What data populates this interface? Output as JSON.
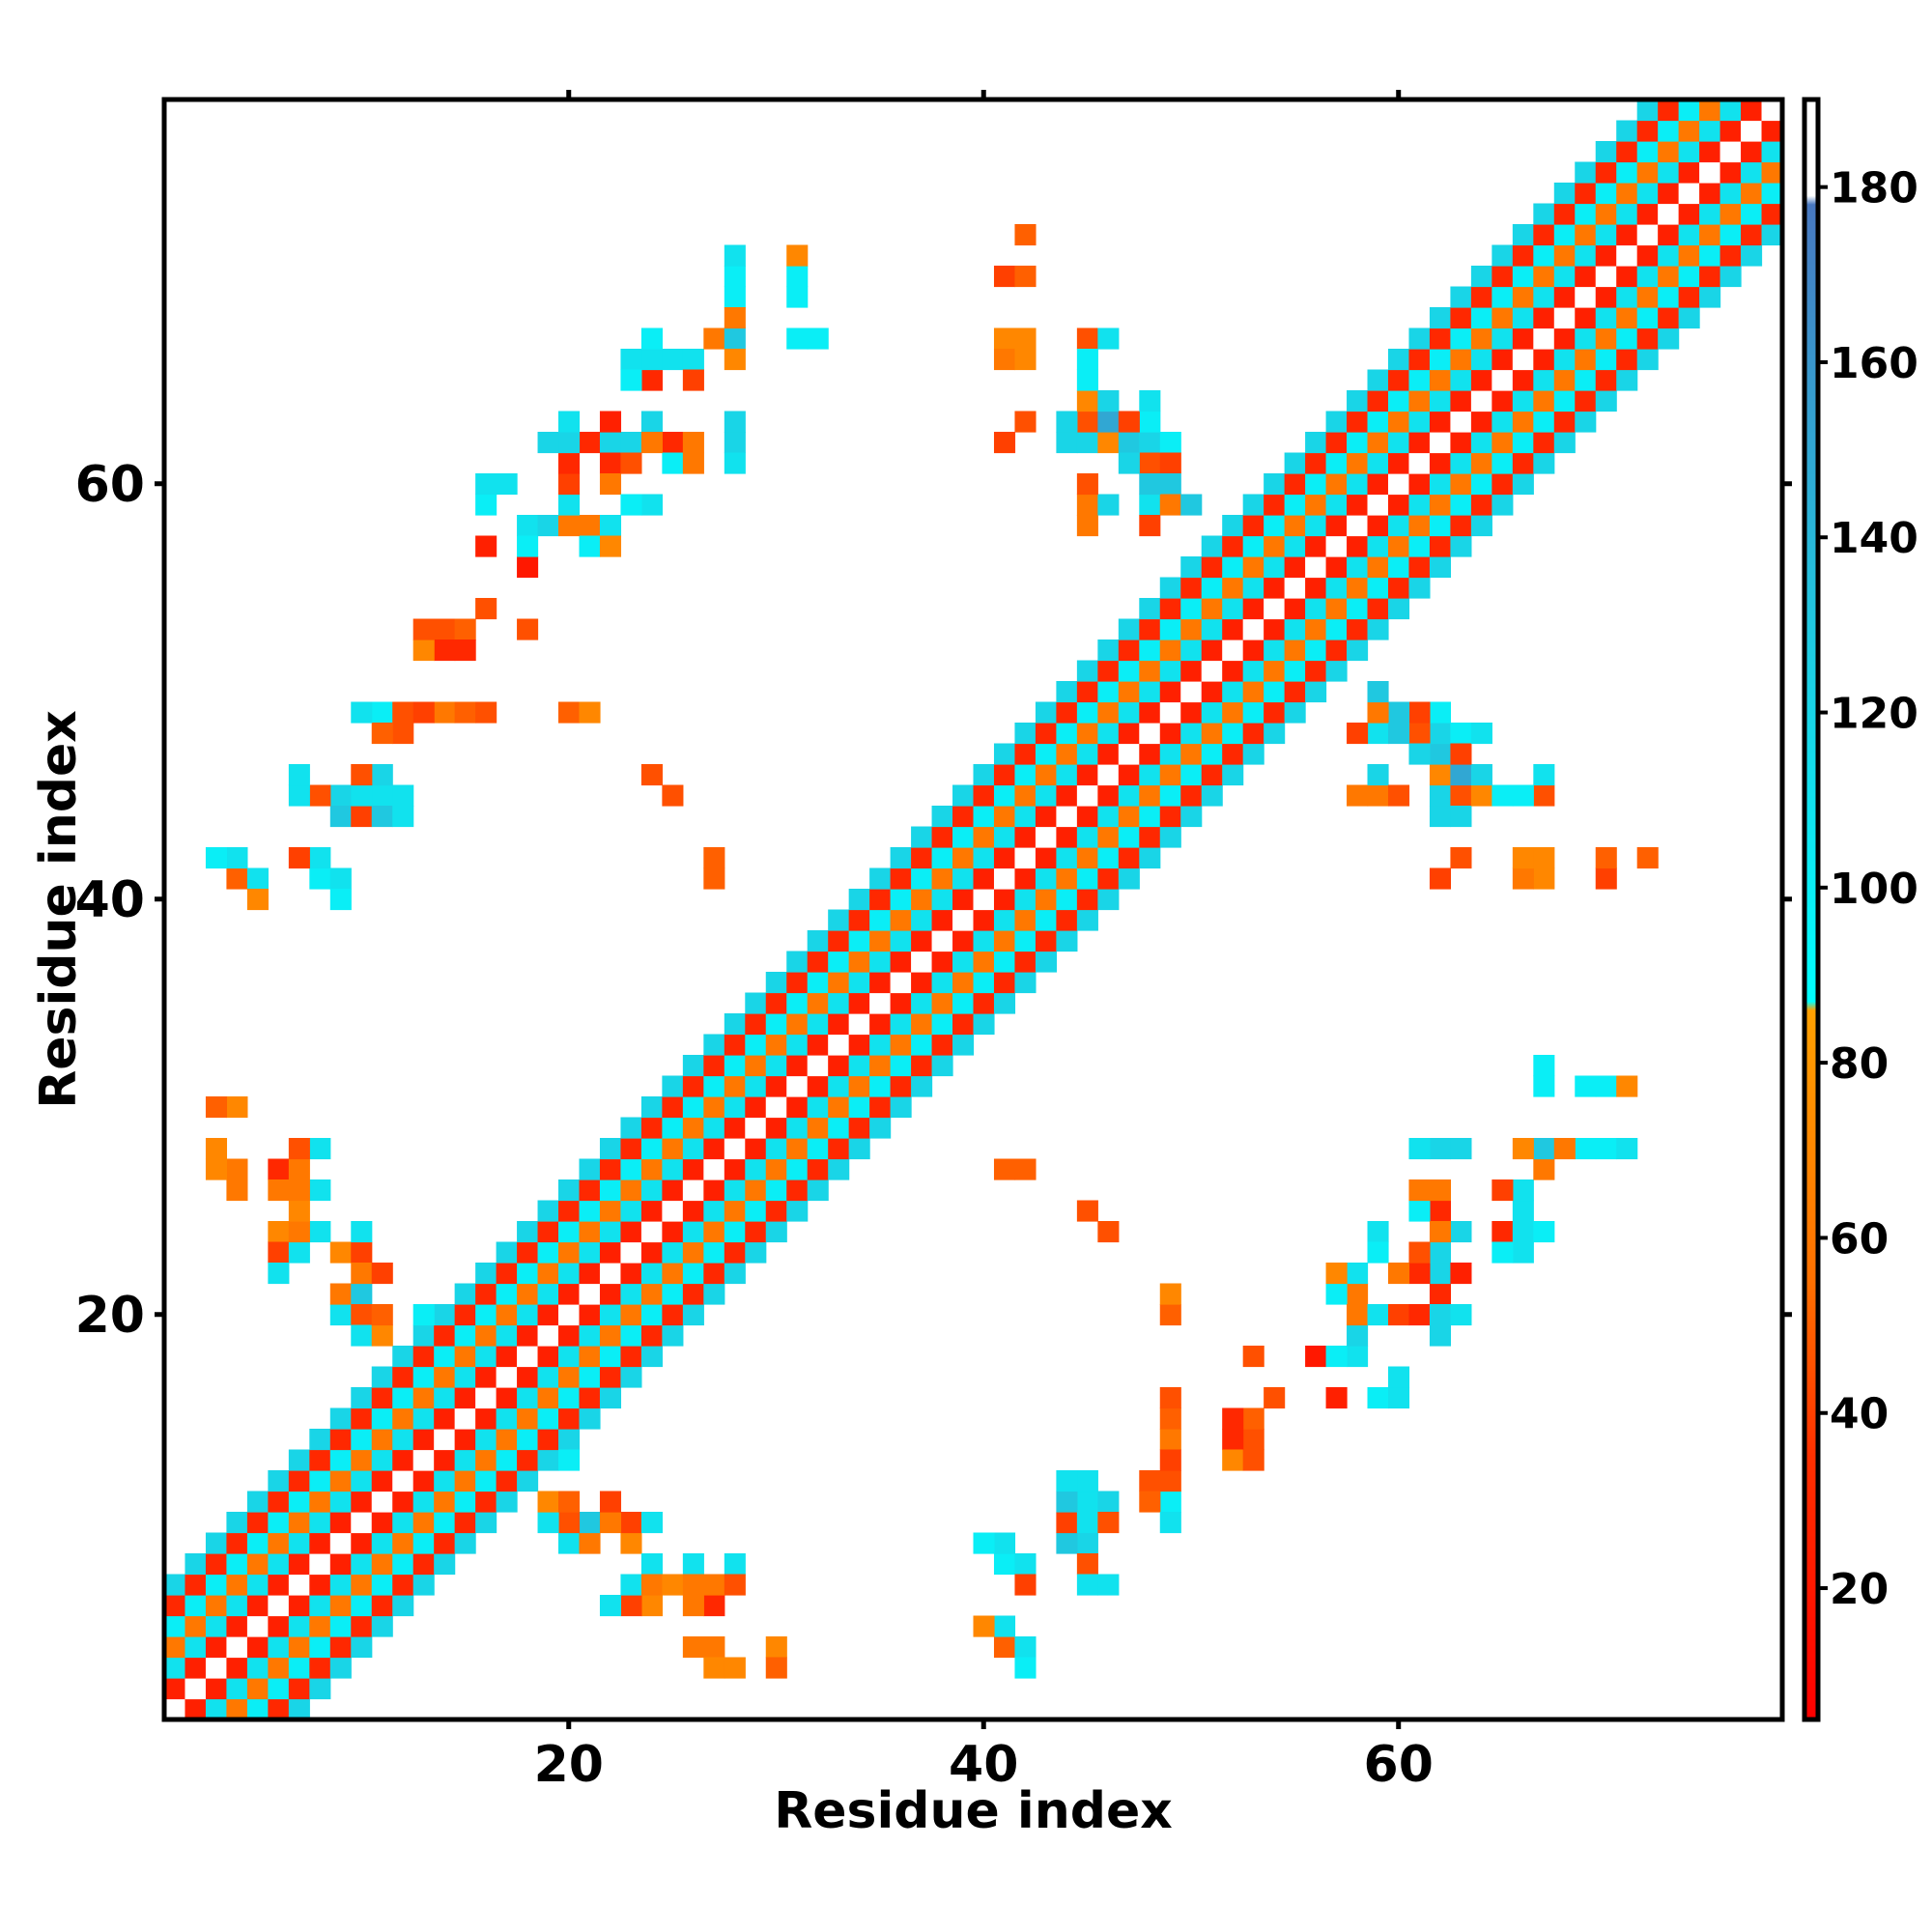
{
  "chart_data": {
    "type": "heatmap",
    "title": "",
    "xlabel": "Residue index",
    "ylabel": "Residue index",
    "xlim": [
      1,
      78
    ],
    "ylim": [
      1,
      78
    ],
    "x_ticks": [
      20,
      40,
      60
    ],
    "y_ticks": [
      20,
      40,
      60
    ],
    "grid": false,
    "legend": "right colorbar",
    "colorbar": {
      "min": 5,
      "max": 190,
      "ticks": [
        20,
        40,
        60,
        80,
        100,
        120,
        140,
        160,
        180
      ],
      "stops": [
        {
          "value": 5,
          "color": "#ff0000"
        },
        {
          "value": 35,
          "color": "#ff3000"
        },
        {
          "value": 55,
          "color": "#ff7000"
        },
        {
          "value": 86,
          "color": "#ffa000"
        },
        {
          "value": 87,
          "color": "#00ffff"
        },
        {
          "value": 130,
          "color": "#20c8e0"
        },
        {
          "value": 178,
          "color": "#4878c0"
        },
        {
          "value": 179,
          "color": "#ffffff"
        },
        {
          "value": 190,
          "color": "#ffffff"
        }
      ]
    },
    "cells": {
      "note_columns": [
        "i",
        "j",
        "value"
      ],
      "diagonal_bands": [
        {
          "offset": 0,
          "value": 180
        },
        {
          "offset": 1,
          "value": 25
        },
        {
          "offset": 2,
          "value": 110
        },
        {
          "offset": 3,
          "value": 60
        },
        {
          "offset": 4,
          "value": 100
        },
        {
          "offset": 5,
          "value": 30
        },
        {
          "offset": 6,
          "value": 120
        }
      ],
      "sheet_region": [
        [
          13,
          22,
          14,
          22
        ]
      ],
      "offdiag": [
        [
          4,
          41,
          100
        ],
        [
          5,
          41,
          110
        ],
        [
          5,
          40,
          70
        ],
        [
          8,
          41,
          50
        ],
        [
          9,
          41,
          110
        ],
        [
          9,
          40,
          100
        ],
        [
          9,
          45,
          120
        ],
        [
          9,
          44,
          130
        ],
        [
          10,
          44,
          40
        ],
        [
          11,
          45,
          40
        ],
        [
          11,
          44,
          130
        ],
        [
          12,
          45,
          110
        ],
        [
          12,
          44,
          110
        ],
        [
          11,
          49,
          120
        ],
        [
          12,
          49,
          110
        ],
        [
          12,
          48,
          45
        ],
        [
          14,
          49,
          40
        ],
        [
          15,
          49,
          50
        ],
        [
          16,
          49,
          45
        ],
        [
          14,
          53,
          40
        ],
        [
          14,
          52,
          70
        ],
        [
          15,
          53,
          50
        ],
        [
          15,
          52,
          30
        ],
        [
          18,
          53,
          45
        ],
        [
          18,
          56,
          20
        ],
        [
          18,
          58,
          110
        ],
        [
          18,
          57,
          100
        ],
        [
          19,
          58,
          100
        ],
        [
          21,
          58,
          60
        ],
        [
          21,
          57,
          100
        ],
        [
          22,
          58,
          110
        ],
        [
          22,
          57,
          70
        ],
        [
          20,
          49,
          50
        ],
        [
          25,
          45,
          45
        ],
        [
          27,
          41,
          50
        ],
        [
          21,
          62,
          100
        ],
        [
          22,
          62,
          120
        ],
        [
          22,
          61,
          30
        ],
        [
          22,
          60,
          60
        ],
        [
          23,
          62,
          60
        ],
        [
          23,
          61,
          45
        ],
        [
          24,
          63,
          30
        ],
        [
          25,
          62,
          30
        ],
        [
          25,
          61,
          100
        ],
        [
          26,
          62,
          60
        ],
        [
          26,
          61,
          60
        ],
        [
          25,
          66,
          110
        ],
        [
          26,
          66,
          110
        ],
        [
          26,
          65,
          40
        ],
        [
          27,
          67,
          50
        ],
        [
          28,
          67,
          120
        ],
        [
          28,
          66,
          100
        ],
        [
          28,
          62,
          120
        ],
        [
          28,
          61,
          110
        ],
        [
          28,
          70,
          100
        ],
        [
          28,
          69,
          100
        ],
        [
          28,
          68,
          60
        ],
        [
          31,
          70,
          70
        ],
        [
          31,
          69,
          100
        ],
        [
          32,
          67,
          100
        ],
        [
          41,
          70,
          40
        ],
        [
          41,
          67,
          70
        ],
        [
          41,
          66,
          60
        ],
        [
          41,
          62,
          40
        ],
        [
          45,
          67,
          45
        ],
        [
          46,
          67,
          100
        ],
        [
          45,
          66,
          100
        ],
        [
          44,
          62,
          120
        ],
        [
          45,
          62,
          45
        ],
        [
          45,
          63,
          100
        ],
        [
          46,
          62,
          70
        ],
        [
          46,
          63,
          150
        ],
        [
          47,
          62,
          60
        ],
        [
          48,
          62,
          120
        ],
        [
          48,
          61,
          140
        ],
        [
          49,
          62,
          100
        ],
        [
          49,
          61,
          40
        ],
        [
          49,
          60,
          130
        ],
        [
          45,
          59,
          40
        ],
        [
          45,
          58,
          60
        ],
        [
          46,
          59,
          120
        ],
        [
          48,
          59,
          110
        ],
        [
          48,
          58,
          40
        ],
        [
          49,
          59,
          60
        ],
        [
          50,
          59,
          130
        ],
        [
          4,
          30,
          70
        ],
        [
          4,
          27,
          60
        ],
        [
          4,
          26,
          60
        ],
        [
          6,
          27,
          30
        ],
        [
          6,
          26,
          60
        ],
        [
          7,
          27,
          120
        ],
        [
          6,
          24,
          70
        ],
        [
          6,
          23,
          40
        ],
        [
          6,
          22,
          110
        ],
        [
          7,
          23,
          110
        ],
        [
          9,
          23,
          70
        ],
        [
          10,
          23,
          40
        ],
        [
          10,
          24,
          110
        ],
        [
          9,
          20,
          110
        ],
        [
          9,
          21,
          60
        ],
        [
          10,
          21,
          60
        ],
        [
          10,
          20,
          45
        ],
        [
          10,
          22,
          150
        ],
        [
          42,
          27,
          50
        ],
        [
          46,
          24,
          45
        ],
        [
          49,
          21,
          70
        ],
        [
          45,
          11,
          110
        ],
        [
          46,
          11,
          120
        ],
        [
          45,
          10,
          110
        ],
        [
          46,
          10,
          45
        ],
        [
          48,
          11,
          50
        ],
        [
          49,
          11,
          100
        ],
        [
          49,
          10,
          110
        ],
        [
          45,
          8,
          45
        ],
        [
          45,
          7,
          110
        ],
        [
          46,
          7,
          110
        ],
        [
          49,
          14,
          60
        ],
        [
          49,
          13,
          40
        ],
        [
          49,
          12,
          45
        ],
        [
          52,
          14,
          30
        ],
        [
          53,
          14,
          45
        ],
        [
          52,
          13,
          70
        ],
        [
          53,
          13,
          45
        ],
        [
          54,
          16,
          45
        ],
        [
          57,
          16,
          25
        ],
        [
          59,
          16,
          100
        ],
        [
          60,
          16,
          110
        ],
        [
          60,
          17,
          110
        ],
        [
          58,
          20,
          60
        ],
        [
          58,
          19,
          120
        ],
        [
          59,
          20,
          110
        ],
        [
          60,
          20,
          40
        ],
        [
          61,
          20,
          30
        ],
        [
          62,
          20,
          120
        ],
        [
          62,
          19,
          120
        ],
        [
          63,
          20,
          110
        ],
        [
          62,
          21,
          30
        ],
        [
          63,
          22,
          25
        ],
        [
          59,
          24,
          110
        ],
        [
          59,
          23,
          100
        ],
        [
          62,
          24,
          60
        ],
        [
          62,
          23,
          120
        ],
        [
          63,
          24,
          120
        ],
        [
          65,
          24,
          30
        ],
        [
          66,
          24,
          110
        ],
        [
          66,
          23,
          110
        ],
        [
          67,
          24,
          100
        ],
        [
          65,
          23,
          100
        ],
        [
          62,
          28,
          120
        ],
        [
          63,
          28,
          120
        ],
        [
          66,
          28,
          70
        ],
        [
          67,
          28,
          130
        ],
        [
          67,
          27,
          60
        ],
        [
          68,
          28,
          60
        ],
        [
          70,
          28,
          100
        ],
        [
          71,
          28,
          110
        ],
        [
          67,
          31,
          100
        ],
        [
          70,
          31,
          100
        ],
        [
          71,
          31,
          70
        ],
        [
          63,
          42,
          45
        ],
        [
          66,
          42,
          70
        ],
        [
          67,
          42,
          70
        ],
        [
          70,
          42,
          50
        ],
        [
          72,
          42,
          50
        ],
        [
          59,
          45,
          60
        ],
        [
          60,
          45,
          45
        ],
        [
          62,
          45,
          120
        ],
        [
          63,
          45,
          45
        ],
        [
          63,
          44,
          120
        ],
        [
          64,
          45,
          70
        ],
        [
          65,
          45,
          100
        ],
        [
          67,
          45,
          45
        ],
        [
          67,
          46,
          110
        ],
        [
          64,
          46,
          120
        ],
        [
          61,
          47,
          120
        ],
        [
          62,
          47,
          130
        ],
        [
          63,
          48,
          100
        ],
        [
          63,
          47,
          40
        ],
        [
          64,
          48,
          110
        ],
        [
          60,
          48,
          130
        ],
        [
          59,
          48,
          110
        ],
        [
          61,
          48,
          45
        ],
        [
          62,
          48,
          120
        ],
        [
          24,
          8,
          110
        ],
        [
          24,
          7,
          60
        ],
        [
          25,
          7,
          70
        ],
        [
          26,
          8,
          110
        ],
        [
          26,
          7,
          60
        ],
        [
          28,
          8,
          110
        ],
        [
          28,
          7,
          45
        ],
        [
          27,
          7,
          60
        ],
        [
          27,
          3,
          70
        ],
        [
          28,
          3,
          70
        ],
        [
          30,
          3,
          50
        ],
        [
          41,
          8,
          100
        ],
        [
          42,
          8,
          110
        ],
        [
          42,
          7,
          40
        ],
        [
          41,
          4,
          50
        ],
        [
          42,
          4,
          110
        ],
        [
          42,
          3,
          100
        ],
        [
          19,
          10,
          110
        ],
        [
          19,
          11,
          70
        ],
        [
          20,
          11,
          50
        ],
        [
          20,
          10,
          45
        ],
        [
          21,
          10,
          130
        ],
        [
          22,
          11,
          40
        ],
        [
          22,
          10,
          60
        ],
        [
          20,
          13,
          100
        ],
        [
          20,
          14,
          120
        ]
      ]
    }
  }
}
